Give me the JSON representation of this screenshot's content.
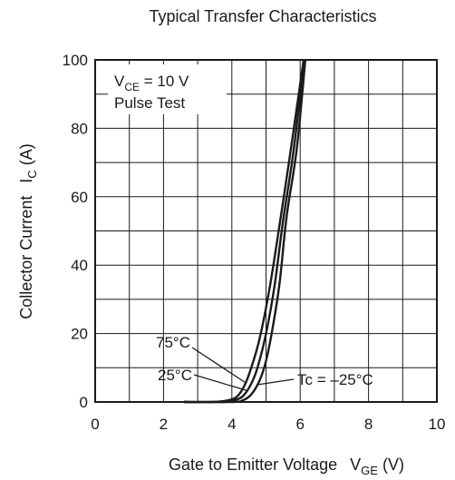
{
  "chart_data": {
    "type": "line",
    "title": "Typical Transfer Characteristics",
    "xlabel": "Gate to Emitter Voltage",
    "xlabel_symbol": "V",
    "xlabel_sub": "GE",
    "xlabel_unit": "(V)",
    "ylabel": "Collector Current",
    "ylabel_symbol": "I",
    "ylabel_sub": "C",
    "ylabel_unit": "(A)",
    "xlim": [
      0,
      10
    ],
    "ylim": [
      0,
      100
    ],
    "xticks": [
      0,
      2,
      4,
      6,
      8,
      10
    ],
    "yticks": [
      0,
      20,
      40,
      60,
      80,
      100
    ],
    "grid": true,
    "line_color": "#1a1a1a",
    "conditions": {
      "line1_pre": "V",
      "line1_sub": "CE",
      "line1_post": " = 10 V",
      "line2": "Pulse Test"
    },
    "series": [
      {
        "name": "75°C",
        "x": [
          2.6,
          3.4,
          3.8,
          4.1,
          4.3,
          4.5,
          4.8,
          5.1,
          5.4,
          5.7,
          6.1
        ],
        "y": [
          0,
          0,
          0.3,
          1.2,
          3.5,
          8,
          18,
          33,
          52,
          72,
          100
        ]
      },
      {
        "name": "25°C",
        "x": [
          2.6,
          3.7,
          4.0,
          4.3,
          4.55,
          4.75,
          5.0,
          5.25,
          5.5,
          5.8,
          6.12
        ],
        "y": [
          0,
          0,
          0.3,
          1.5,
          5,
          10,
          20,
          34,
          53,
          73,
          100
        ]
      },
      {
        "name": "Tc = –25°C",
        "x": [
          2.6,
          4.0,
          4.3,
          4.55,
          4.8,
          5.0,
          5.2,
          5.4,
          5.6,
          5.9,
          6.15
        ],
        "y": [
          0,
          0,
          0.4,
          2,
          6,
          12,
          22,
          35,
          54,
          74,
          100
        ]
      }
    ],
    "annotations": [
      {
        "text": "75°C",
        "series": 0,
        "at_x": 4.42,
        "at_y": 5.5,
        "side": "left"
      },
      {
        "text": "25°C",
        "series": 1,
        "at_x": 4.45,
        "at_y": 3.3,
        "side": "left"
      },
      {
        "text": "Tc = –25°C",
        "series": 2,
        "at_x": 4.72,
        "at_y": 5.0,
        "side": "right"
      }
    ]
  }
}
